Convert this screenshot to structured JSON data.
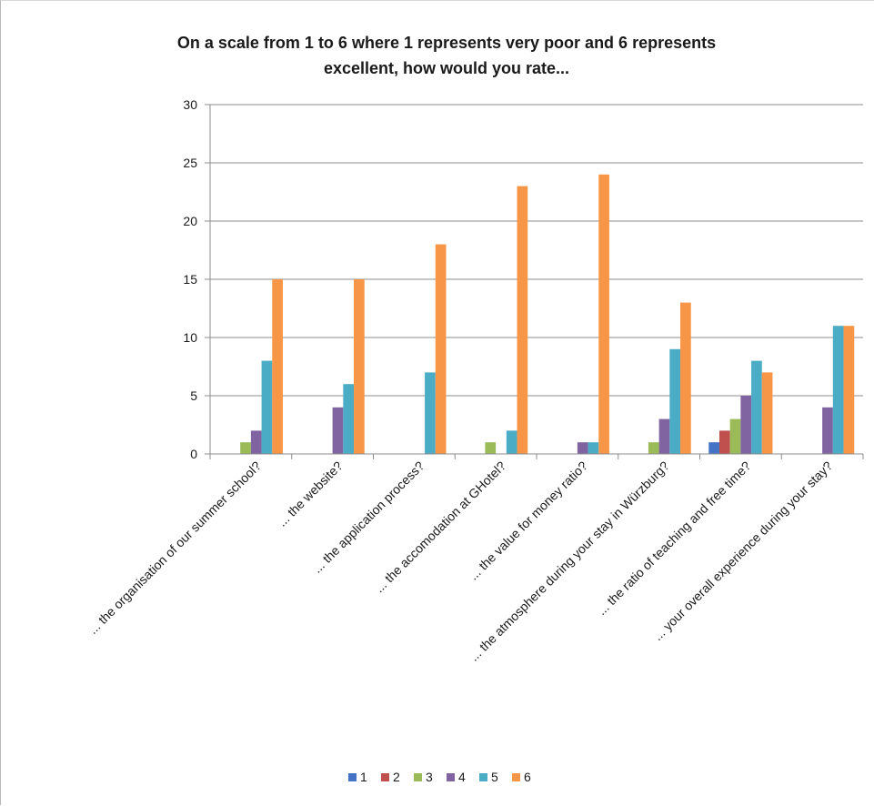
{
  "chart_data": {
    "type": "bar",
    "title_lines": [
      "On a scale from 1 to 6 where 1 represents very poor and 6 represents",
      "excellent, how would you rate..."
    ],
    "categories": [
      "... the organisation of our summer school?",
      "... the website?",
      "... the application process?",
      "... the accomodation at GHotel?",
      "... the value for money ratio?",
      "... the atmosphere during your stay in Würzburg?",
      "... the ratio of teaching and free time?",
      "... your overall experience during your stay?"
    ],
    "series": [
      {
        "name": "1",
        "color": "#4472c4",
        "values": [
          0,
          0,
          0,
          0,
          0,
          0,
          1,
          0
        ]
      },
      {
        "name": "2",
        "color": "#c0504d",
        "values": [
          0,
          0,
          0,
          0,
          0,
          0,
          2,
          0
        ]
      },
      {
        "name": "3",
        "color": "#9bbb59",
        "values": [
          1,
          0,
          0,
          1,
          0,
          1,
          3,
          0
        ]
      },
      {
        "name": "4",
        "color": "#8064a2",
        "values": [
          2,
          4,
          0,
          0,
          1,
          3,
          5,
          4
        ]
      },
      {
        "name": "5",
        "color": "#4bacc6",
        "values": [
          8,
          6,
          7,
          2,
          1,
          9,
          8,
          11
        ]
      },
      {
        "name": "6",
        "color": "#f79646",
        "values": [
          15,
          15,
          18,
          23,
          24,
          13,
          7,
          11
        ]
      }
    ],
    "ylim": [
      0,
      30
    ],
    "yticks": [
      0,
      5,
      10,
      15,
      20,
      25,
      30
    ],
    "grid": true,
    "legend_position": "bottom"
  }
}
